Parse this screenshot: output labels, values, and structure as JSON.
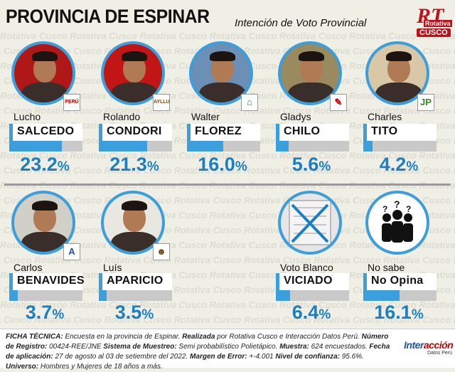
{
  "header": {
    "title": "PROVINCIA DE ESPINAR",
    "subtitle": "Intención de Voto Provincial",
    "logo_main": "RT",
    "logo_line1": "Rotativa",
    "logo_line2": "CUSCO",
    "watermark": "Rotativa Cusco"
  },
  "chart_data": {
    "type": "bar",
    "title": "Intención de Voto Provincial",
    "unit": "%",
    "categories": [
      "Lucho SALCEDO",
      "Rolando CONDORI",
      "Walter FLOREZ",
      "Gladys CHILO",
      "Charles TITO",
      "Carlos BENAVIDES",
      "Luís APARICIO",
      "Voto Blanco VICIADO",
      "No sabe No Opina"
    ],
    "values": [
      23.2,
      21.3,
      16.0,
      5.6,
      4.2,
      3.7,
      3.5,
      6.4,
      16.1
    ],
    "ylim": [
      0,
      100
    ]
  },
  "candidates": [
    {
      "first": "Lucho",
      "last": "SALCEDO",
      "value": 23.2,
      "pct": "23.2",
      "sign": "%",
      "badge": "PERÚ",
      "badge_color": "#c00",
      "photo_bg": "#b01818",
      "kind": "person"
    },
    {
      "first": "Rolando",
      "last": "CONDORI",
      "value": 21.3,
      "pct": "21.3",
      "sign": "%",
      "badge": "AYLLU",
      "badge_color": "#7a4a10",
      "photo_bg": "#c21616",
      "kind": "person"
    },
    {
      "first": "Walter",
      "last": "FLOREZ",
      "value": 16.0,
      "pct": "16.0",
      "sign": "%",
      "badge": "⌂",
      "badge_color": "#2a8a2a",
      "photo_bg": "#6b8fb5",
      "kind": "person"
    },
    {
      "first": "Gladys",
      "last": "CHILO",
      "value": 5.6,
      "pct": "5.6",
      "sign": "%",
      "badge": "✎",
      "badge_color": "#c00",
      "photo_bg": "#9a8a60",
      "kind": "person"
    },
    {
      "first": "Charles",
      "last": "TITO",
      "value": 4.2,
      "pct": "4.2",
      "sign": "%",
      "badge": "JP",
      "badge_color": "#3a8a2a",
      "photo_bg": "#d8c8a8",
      "kind": "person"
    },
    {
      "first": "Carlos",
      "last": "BENAVIDES",
      "value": 3.7,
      "pct": "3.7",
      "sign": "%",
      "badge": "A",
      "badge_color": "#1e4fa8",
      "photo_bg": "#d0d0c8",
      "kind": "person"
    },
    {
      "first": "Luís",
      "last": "APARICIO",
      "value": 3.5,
      "pct": "3.5",
      "sign": "%",
      "badge": "☻",
      "badge_color": "#6a4a10",
      "photo_bg": "#e8e8e0",
      "kind": "person"
    },
    {
      "first": "Voto Blanco",
      "last": "VICIADO",
      "value": 6.4,
      "pct": "6.4",
      "sign": "%",
      "badge": "",
      "badge_color": "#fff",
      "photo_bg": "#e6e6e6",
      "kind": "ballot"
    },
    {
      "first": "No sabe",
      "last": "No Opina",
      "value": 16.1,
      "pct": "16.1",
      "sign": "%",
      "badge": "",
      "badge_color": "#fff",
      "photo_bg": "#ffffff",
      "kind": "unknown"
    }
  ],
  "ficha": {
    "l_ficha": "FICHA TÉCNICA:",
    "t_ficha": " Encuesta en la provincia de Espinar. ",
    "l_realizada": "Realizada",
    "t_realizada": " por Rotativa Cusco e Interacción Datos Perú. ",
    "l_registro": "Número de Registro:",
    "t_registro": " 00424-REE/JNE ",
    "l_muestreo": "Sistema de Muestreo:",
    "t_muestreo": " Semi probabilístico Polietápico. ",
    "l_muestra": "Muestra:",
    "t_muestra": " 624 encuestados. ",
    "l_fecha": "Fecha de aplicación:",
    "t_fecha": " 27 de agosto al 03 de setiembre del 2022. ",
    "l_margen": "Margen de Error:",
    "t_margen": " +-4.001 ",
    "l_nivel": "Nivel de confianza:",
    "t_nivel": " 95.6%. ",
    "l_universo": "Universo:",
    "t_universo": " Hombres y Mujeres de 18 años a más."
  },
  "interaccion": {
    "main_a": "Inter",
    "main_b": "acción",
    "sub": "Datos Perú"
  },
  "colors": {
    "accent": "#3a9fdc",
    "bar_bg": "#c9c9c9",
    "pct_text": "#1b7fc4"
  }
}
